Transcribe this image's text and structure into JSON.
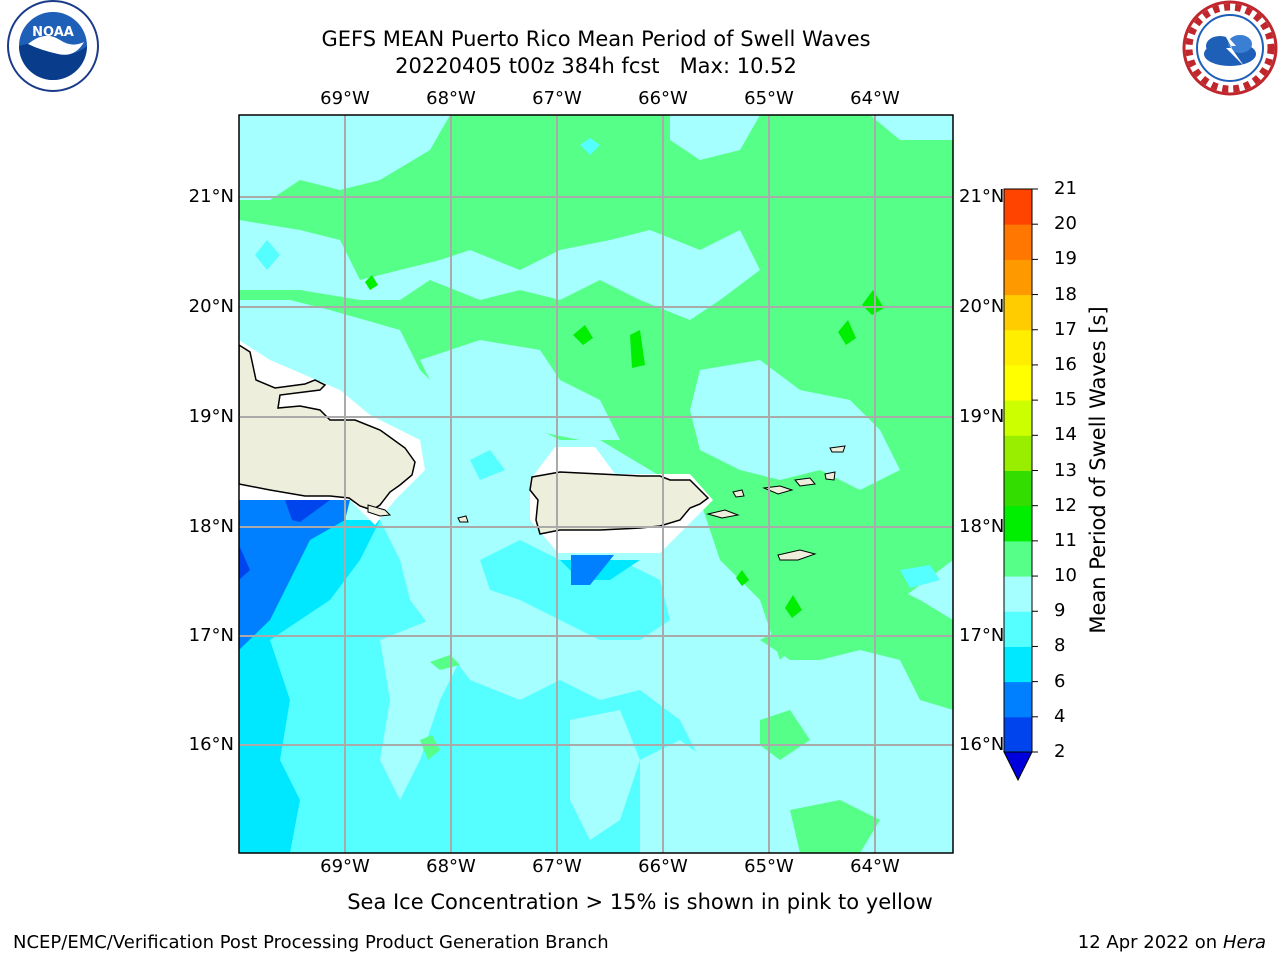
{
  "title": {
    "line1": "GEFS MEAN Puerto Rico Mean Period of Swell Waves",
    "line2": "20220405 t00z 384h fcst   Max: 10.52"
  },
  "axes": {
    "lon_labels": [
      "69°W",
      "68°W",
      "67°W",
      "66°W",
      "65°W",
      "64°W"
    ],
    "lat_labels": [
      "21°N",
      "20°N",
      "19°N",
      "18°N",
      "17°N",
      "16°N"
    ]
  },
  "colorbar": {
    "title": "Mean Period of Swell Waves [s]",
    "levels": [
      "2",
      "4",
      "6",
      "8",
      "9",
      "10",
      "11",
      "12",
      "13",
      "14",
      "15",
      "16",
      "17",
      "18",
      "19",
      "20",
      "21"
    ],
    "colors": [
      "#0000dd",
      "#0044ee",
      "#0080ff",
      "#00e8ff",
      "#55ffff",
      "#a6ffff",
      "#55ff88",
      "#00ee00",
      "#33dd00",
      "#99ee00",
      "#ccff00",
      "#ffff00",
      "#ffee00",
      "#ffcc00",
      "#ff9900",
      "#ff7700",
      "#ff4400",
      "#ff1100"
    ]
  },
  "caption": "Sea Ice Concentration > 15% is shown in pink to yellow",
  "footer": {
    "left": "NCEP/EMC/Verification Post Processing Product Generation Branch",
    "right_date": "12 Apr 2022 on",
    "right_machine": "Hera"
  },
  "logos": {
    "noaa": "NOAA",
    "nws": "NATIONAL WEATHER SERVICE"
  }
}
